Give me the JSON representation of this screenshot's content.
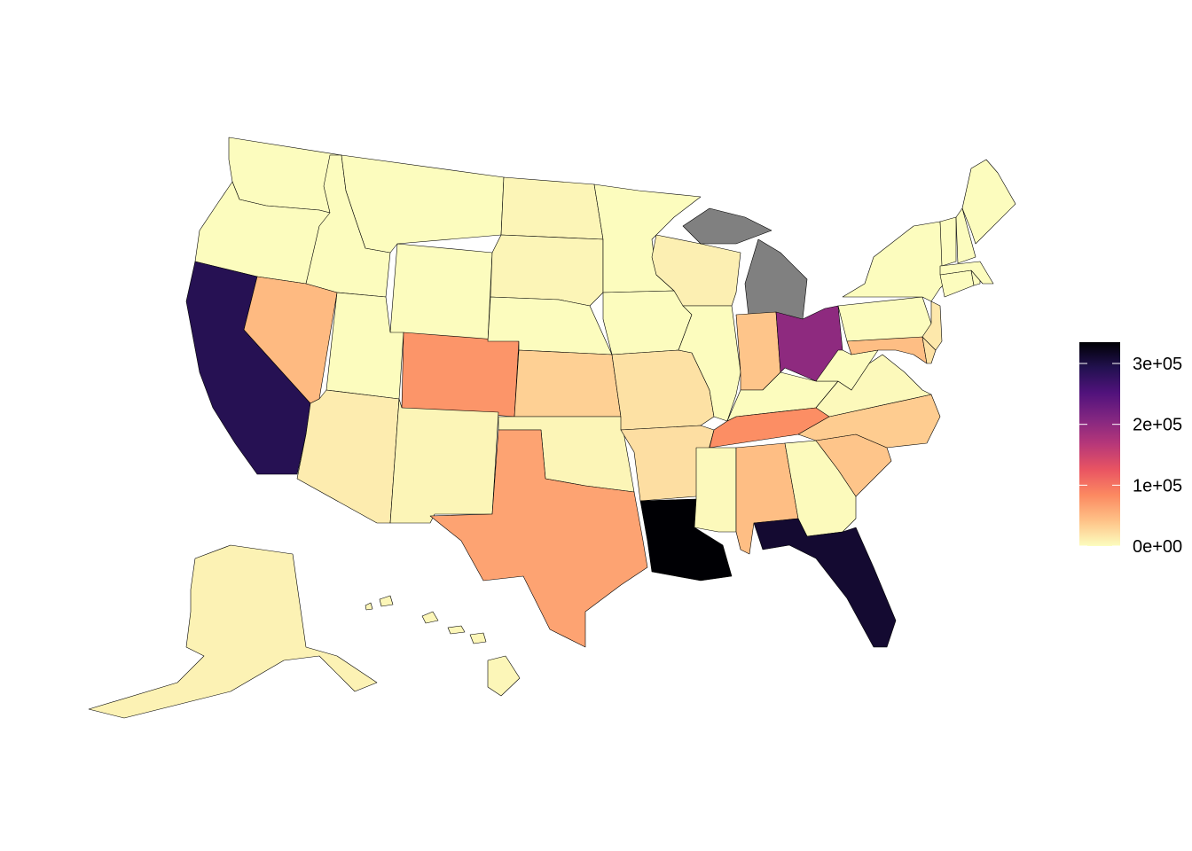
{
  "map": {
    "type": "choropleth",
    "region": "United States",
    "palette": "magma (reversed)",
    "na_color": "#808080",
    "border_color": "#000000",
    "values": {
      "WA": 1000,
      "OR": 1000,
      "CA": 290000,
      "ID": 1000,
      "MT": 1000,
      "WY": 1000,
      "NV": 48000,
      "UT": 1000,
      "AZ": 12000,
      "CO": 75000,
      "NM": 6000,
      "ND": 6000,
      "SD": 6000,
      "NE": 1000,
      "KS": 32000,
      "OK": 6000,
      "TX": 65000,
      "MN": 1000,
      "IA": 1000,
      "MO": 20000,
      "AR": 22000,
      "LA": 335000,
      "WI": 10000,
      "IL": 1000,
      "MI": null,
      "IN": 40000,
      "OH": 200000,
      "KY": 1000,
      "TN": 80000,
      "MS": 3000,
      "AL": 45000,
      "GA": 2000,
      "FL": 310000,
      "SC": 40000,
      "NC": 35000,
      "VA": 3000,
      "WV": 1000,
      "PA": 1000,
      "NY": 1000,
      "MD": 45000,
      "DE": 20000,
      "NJ": 15000,
      "CT": 1000,
      "RI": 1000,
      "MA": 1000,
      "VT": 1000,
      "NH": 1000,
      "ME": 1000,
      "AK": 8000,
      "HI": 5000
    }
  },
  "legend": {
    "range": [
      0,
      335000
    ],
    "position": "right",
    "ticks": [
      {
        "value": 0,
        "label": "0e+00"
      },
      {
        "value": 100000,
        "label": "1e+05"
      },
      {
        "value": 200000,
        "label": "2e+05"
      },
      {
        "value": 300000,
        "label": "3e+05"
      }
    ]
  }
}
